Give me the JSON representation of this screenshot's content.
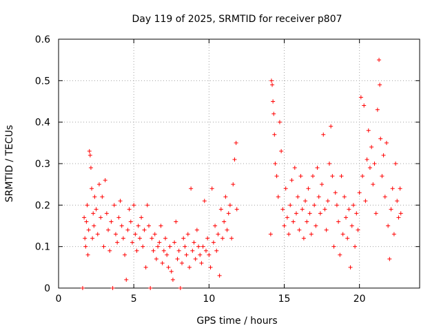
{
  "chart_data": {
    "type": "scatter",
    "title": "Day 119 of 2025, SRMTID for receiver p807",
    "xlabel": "GPS time / hours",
    "ylabel": "SRMTID / TECUs",
    "xlim": [
      0,
      24
    ],
    "ylim": [
      0,
      0.6
    ],
    "xticks": [
      0,
      5,
      10,
      15,
      20
    ],
    "xtick_labels": [
      "0",
      "5",
      "10",
      "15",
      "20"
    ],
    "yticks": [
      0,
      0.1,
      0.2,
      0.3,
      0.4,
      0.5,
      0.6
    ],
    "ytick_labels": [
      "0",
      "0.1",
      "0.2",
      "0.3",
      "0.4",
      "0.5",
      "0.6"
    ],
    "grid": true,
    "marker": "+",
    "color": "#ff0000",
    "series": [
      {
        "name": "SRMTID",
        "points": [
          [
            1.6,
            0.0
          ],
          [
            1.7,
            0.17
          ],
          [
            1.75,
            0.12
          ],
          [
            1.8,
            0.1
          ],
          [
            1.85,
            0.16
          ],
          [
            1.9,
            0.2
          ],
          [
            1.95,
            0.08
          ],
          [
            2.0,
            0.14
          ],
          [
            2.05,
            0.33
          ],
          [
            2.1,
            0.32
          ],
          [
            2.15,
            0.29
          ],
          [
            2.2,
            0.24
          ],
          [
            2.25,
            0.12
          ],
          [
            2.3,
            0.18
          ],
          [
            2.35,
            0.15
          ],
          [
            2.4,
            0.22
          ],
          [
            2.5,
            0.19
          ],
          [
            2.6,
            0.13
          ],
          [
            2.7,
            0.25
          ],
          [
            2.8,
            0.17
          ],
          [
            2.9,
            0.22
          ],
          [
            3.0,
            0.1
          ],
          [
            3.1,
            0.26
          ],
          [
            3.2,
            0.18
          ],
          [
            3.3,
            0.14
          ],
          [
            3.4,
            0.09
          ],
          [
            3.5,
            0.16
          ],
          [
            3.6,
            0.0
          ],
          [
            3.7,
            0.2
          ],
          [
            3.8,
            0.13
          ],
          [
            3.9,
            0.11
          ],
          [
            4.0,
            0.17
          ],
          [
            4.1,
            0.21
          ],
          [
            4.2,
            0.15
          ],
          [
            4.3,
            0.12
          ],
          [
            4.4,
            0.08
          ],
          [
            4.5,
            0.02
          ],
          [
            4.6,
            0.14
          ],
          [
            4.7,
            0.19
          ],
          [
            4.8,
            0.16
          ],
          [
            4.9,
            0.11
          ],
          [
            5.0,
            0.2
          ],
          [
            5.1,
            0.13
          ],
          [
            5.2,
            0.09
          ],
          [
            5.3,
            0.15
          ],
          [
            5.4,
            0.12
          ],
          [
            5.5,
            0.17
          ],
          [
            5.6,
            0.1
          ],
          [
            5.7,
            0.14
          ],
          [
            5.8,
            0.05
          ],
          [
            5.9,
            0.2
          ],
          [
            6.0,
            0.15
          ],
          [
            6.1,
            0.0
          ],
          [
            6.2,
            0.12
          ],
          [
            6.3,
            0.09
          ],
          [
            6.4,
            0.13
          ],
          [
            6.5,
            0.07
          ],
          [
            6.6,
            0.1
          ],
          [
            6.7,
            0.11
          ],
          [
            6.8,
            0.15
          ],
          [
            6.9,
            0.06
          ],
          [
            7.0,
            0.09
          ],
          [
            7.1,
            0.12
          ],
          [
            7.2,
            0.08
          ],
          [
            7.3,
            0.05
          ],
          [
            7.4,
            0.1
          ],
          [
            7.5,
            0.04
          ],
          [
            7.6,
            0.02
          ],
          [
            7.7,
            0.11
          ],
          [
            7.8,
            0.16
          ],
          [
            7.9,
            0.07
          ],
          [
            8.0,
            0.09
          ],
          [
            8.1,
            0.0
          ],
          [
            8.2,
            0.06
          ],
          [
            8.3,
            0.12
          ],
          [
            8.4,
            0.1
          ],
          [
            8.5,
            0.08
          ],
          [
            8.6,
            0.13
          ],
          [
            8.7,
            0.05
          ],
          [
            8.8,
            0.24
          ],
          [
            8.9,
            0.09
          ],
          [
            9.0,
            0.11
          ],
          [
            9.1,
            0.07
          ],
          [
            9.2,
            0.14
          ],
          [
            9.3,
            0.1
          ],
          [
            9.4,
            0.08
          ],
          [
            9.5,
            0.06
          ],
          [
            9.6,
            0.1
          ],
          [
            9.7,
            0.21
          ],
          [
            9.8,
            0.09
          ],
          [
            9.9,
            0.12
          ],
          [
            10.0,
            0.08
          ],
          [
            10.1,
            0.05
          ],
          [
            10.2,
            0.24
          ],
          [
            10.3,
            0.11
          ],
          [
            10.4,
            0.15
          ],
          [
            10.5,
            0.09
          ],
          [
            10.6,
            0.13
          ],
          [
            10.7,
            0.03
          ],
          [
            10.8,
            0.19
          ],
          [
            10.9,
            0.12
          ],
          [
            11.0,
            0.16
          ],
          [
            11.1,
            0.22
          ],
          [
            11.2,
            0.14
          ],
          [
            11.3,
            0.18
          ],
          [
            11.4,
            0.2
          ],
          [
            11.5,
            0.12
          ],
          [
            11.6,
            0.25
          ],
          [
            11.7,
            0.31
          ],
          [
            11.8,
            0.35
          ],
          [
            11.85,
            0.19
          ],
          [
            14.1,
            0.13
          ],
          [
            14.15,
            0.5
          ],
          [
            14.2,
            0.49
          ],
          [
            14.25,
            0.45
          ],
          [
            14.3,
            0.42
          ],
          [
            14.35,
            0.37
          ],
          [
            14.4,
            0.3
          ],
          [
            14.5,
            0.27
          ],
          [
            14.6,
            0.22
          ],
          [
            14.7,
            0.4
          ],
          [
            14.8,
            0.33
          ],
          [
            14.9,
            0.19
          ],
          [
            15.0,
            0.15
          ],
          [
            15.1,
            0.24
          ],
          [
            15.2,
            0.17
          ],
          [
            15.3,
            0.13
          ],
          [
            15.4,
            0.2
          ],
          [
            15.5,
            0.26
          ],
          [
            15.6,
            0.16
          ],
          [
            15.7,
            0.29
          ],
          [
            15.8,
            0.18
          ],
          [
            15.9,
            0.22
          ],
          [
            16.0,
            0.14
          ],
          [
            16.1,
            0.27
          ],
          [
            16.2,
            0.19
          ],
          [
            16.3,
            0.12
          ],
          [
            16.4,
            0.21
          ],
          [
            16.5,
            0.16
          ],
          [
            16.6,
            0.24
          ],
          [
            16.7,
            0.18
          ],
          [
            16.8,
            0.13
          ],
          [
            16.9,
            0.27
          ],
          [
            17.0,
            0.2
          ],
          [
            17.1,
            0.15
          ],
          [
            17.2,
            0.29
          ],
          [
            17.3,
            0.22
          ],
          [
            17.4,
            0.18
          ],
          [
            17.5,
            0.25
          ],
          [
            17.6,
            0.37
          ],
          [
            17.7,
            0.19
          ],
          [
            17.8,
            0.14
          ],
          [
            17.9,
            0.21
          ],
          [
            18.0,
            0.3
          ],
          [
            18.1,
            0.39
          ],
          [
            18.2,
            0.27
          ],
          [
            18.3,
            0.1
          ],
          [
            18.4,
            0.23
          ],
          [
            18.5,
            0.2
          ],
          [
            18.6,
            0.16
          ],
          [
            18.7,
            0.08
          ],
          [
            18.8,
            0.27
          ],
          [
            18.9,
            0.13
          ],
          [
            19.0,
            0.22
          ],
          [
            19.1,
            0.17
          ],
          [
            19.2,
            0.12
          ],
          [
            19.3,
            0.19
          ],
          [
            19.4,
            0.05
          ],
          [
            19.5,
            0.15
          ],
          [
            19.6,
            0.2
          ],
          [
            19.7,
            0.1
          ],
          [
            19.8,
            0.18
          ],
          [
            19.9,
            0.14
          ],
          [
            20.0,
            0.23
          ],
          [
            20.1,
            0.46
          ],
          [
            20.2,
            0.27
          ],
          [
            20.3,
            0.44
          ],
          [
            20.4,
            0.21
          ],
          [
            20.5,
            0.31
          ],
          [
            20.6,
            0.38
          ],
          [
            20.7,
            0.29
          ],
          [
            20.8,
            0.34
          ],
          [
            20.9,
            0.25
          ],
          [
            21.0,
            0.3
          ],
          [
            21.1,
            0.18
          ],
          [
            21.2,
            0.43
          ],
          [
            21.3,
            0.55
          ],
          [
            21.35,
            0.49
          ],
          [
            21.4,
            0.36
          ],
          [
            21.5,
            0.27
          ],
          [
            21.6,
            0.32
          ],
          [
            21.7,
            0.22
          ],
          [
            21.8,
            0.35
          ],
          [
            21.9,
            0.15
          ],
          [
            22.0,
            0.07
          ],
          [
            22.1,
            0.19
          ],
          [
            22.2,
            0.24
          ],
          [
            22.3,
            0.13
          ],
          [
            22.4,
            0.3
          ],
          [
            22.5,
            0.21
          ],
          [
            22.6,
            0.17
          ],
          [
            22.7,
            0.24
          ],
          [
            22.75,
            0.18
          ]
        ]
      }
    ]
  }
}
